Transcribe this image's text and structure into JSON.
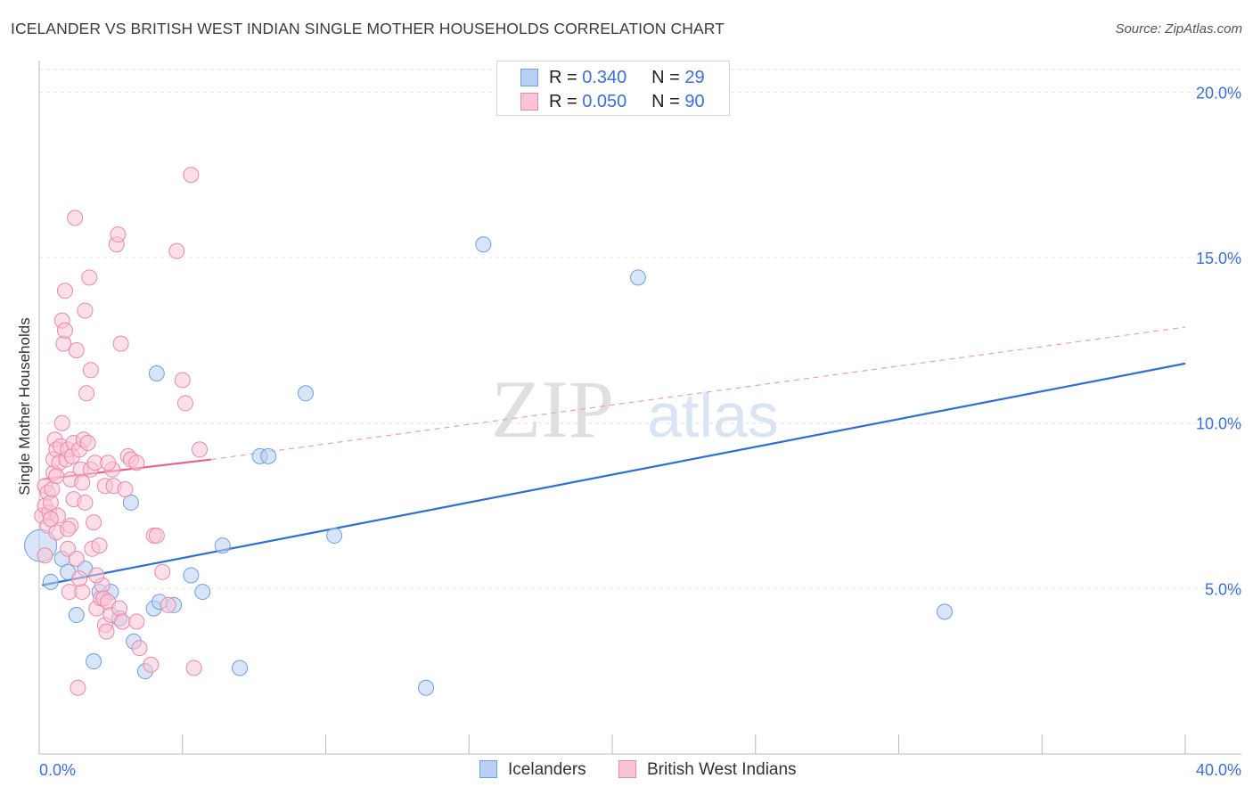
{
  "title": "ICELANDER VS BRITISH WEST INDIAN SINGLE MOTHER HOUSEHOLDS CORRELATION CHART",
  "source": "Source: ZipAtlas.com",
  "watermark": {
    "zip": "ZIP",
    "atlas": "atlas"
  },
  "legend": {
    "r_label": "R =",
    "n_label": "N =",
    "series": [
      {
        "name": "Icelanders",
        "r": "0.340",
        "n": "29",
        "fill": "#b8d0f4",
        "stroke": "#6f9fe0"
      },
      {
        "name": "British West Indians",
        "r": "0.050",
        "n": "90",
        "fill": "#f9c4d6",
        "stroke": "#e88aaa"
      }
    ]
  },
  "chart_data": {
    "type": "scatter",
    "title": "ICELANDER VS BRITISH WEST INDIAN SINGLE MOTHER HOUSEHOLDS CORRELATION CHART",
    "xlabel": "",
    "ylabel": "Single Mother Households",
    "xlim": [
      0,
      40
    ],
    "ylim": [
      0,
      20.9
    ],
    "x_tick_labels": [
      "0.0%",
      "40.0%"
    ],
    "y_ticks": [
      5,
      10,
      15,
      20
    ],
    "y_tick_labels": [
      "5.0%",
      "10.0%",
      "15.0%",
      "20.0%"
    ],
    "grid": true,
    "series": [
      {
        "name": "Icelanders",
        "color": "#6f9fe0",
        "fill": "#b8d0f4",
        "line_color": "#2f6fcf",
        "trend": {
          "x": [
            0.1,
            40
          ],
          "y": [
            5.1,
            11.8
          ],
          "style": "solid"
        },
        "points": [
          [
            0.05,
            6.3
          ],
          [
            0.4,
            5.2
          ],
          [
            0.8,
            5.9
          ],
          [
            1.0,
            5.5
          ],
          [
            1.3,
            4.2
          ],
          [
            1.6,
            5.6
          ],
          [
            1.9,
            2.8
          ],
          [
            2.1,
            4.9
          ],
          [
            2.5,
            4.9
          ],
          [
            2.8,
            4.1
          ],
          [
            3.2,
            7.6
          ],
          [
            3.3,
            3.4
          ],
          [
            3.7,
            2.5
          ],
          [
            4.0,
            4.4
          ],
          [
            4.2,
            4.6
          ],
          [
            4.1,
            11.5
          ],
          [
            4.7,
            4.5
          ],
          [
            5.3,
            5.4
          ],
          [
            5.7,
            4.9
          ],
          [
            6.4,
            6.3
          ],
          [
            7.0,
            2.6
          ],
          [
            7.7,
            9.0
          ],
          [
            8.0,
            9.0
          ],
          [
            9.3,
            10.9
          ],
          [
            10.3,
            6.6
          ],
          [
            13.5,
            2.0
          ],
          [
            15.5,
            15.4
          ],
          [
            20.9,
            14.4
          ],
          [
            31.6,
            4.3
          ]
        ]
      },
      {
        "name": "British West Indians",
        "color": "#e88aaa",
        "fill": "#f9c4d6",
        "line_color": "#e8628e",
        "trend": {
          "x": [
            0.1,
            6.0
          ],
          "y": [
            8.3,
            8.9
          ],
          "style": "solid"
        },
        "trend_extension": {
          "x": [
            6.0,
            40
          ],
          "y": [
            8.9,
            12.9
          ],
          "style": "dashed"
        },
        "points": [
          [
            0.1,
            7.2
          ],
          [
            0.2,
            7.5
          ],
          [
            0.2,
            8.1
          ],
          [
            0.3,
            6.9
          ],
          [
            0.3,
            7.9
          ],
          [
            0.35,
            7.3
          ],
          [
            0.4,
            7.6
          ],
          [
            0.45,
            8.0
          ],
          [
            0.5,
            8.5
          ],
          [
            0.5,
            8.9
          ],
          [
            0.55,
            9.5
          ],
          [
            0.6,
            9.2
          ],
          [
            0.6,
            6.7
          ],
          [
            0.65,
            7.2
          ],
          [
            0.7,
            8.8
          ],
          [
            0.75,
            9.3
          ],
          [
            0.8,
            10.0
          ],
          [
            0.8,
            13.1
          ],
          [
            0.85,
            12.4
          ],
          [
            0.9,
            14.0
          ],
          [
            0.9,
            12.8
          ],
          [
            0.95,
            8.9
          ],
          [
            1.0,
            9.2
          ],
          [
            1.0,
            6.2
          ],
          [
            1.05,
            4.9
          ],
          [
            1.1,
            8.3
          ],
          [
            1.1,
            6.9
          ],
          [
            1.15,
            9.0
          ],
          [
            1.2,
            7.7
          ],
          [
            1.2,
            9.4
          ],
          [
            1.25,
            16.2
          ],
          [
            1.3,
            12.2
          ],
          [
            1.3,
            5.9
          ],
          [
            1.35,
            2.0
          ],
          [
            1.4,
            9.2
          ],
          [
            1.45,
            8.6
          ],
          [
            1.5,
            8.2
          ],
          [
            1.5,
            4.9
          ],
          [
            1.55,
            9.5
          ],
          [
            1.6,
            7.6
          ],
          [
            1.6,
            13.4
          ],
          [
            1.65,
            10.9
          ],
          [
            1.7,
            9.4
          ],
          [
            1.75,
            14.4
          ],
          [
            1.8,
            11.6
          ],
          [
            1.8,
            8.6
          ],
          [
            1.85,
            6.2
          ],
          [
            1.9,
            7.0
          ],
          [
            1.95,
            8.8
          ],
          [
            2.0,
            4.4
          ],
          [
            2.1,
            6.3
          ],
          [
            2.15,
            4.7
          ],
          [
            2.2,
            5.1
          ],
          [
            2.25,
            4.7
          ],
          [
            2.3,
            3.9
          ],
          [
            2.3,
            8.1
          ],
          [
            2.35,
            3.7
          ],
          [
            2.4,
            4.6
          ],
          [
            2.5,
            4.2
          ],
          [
            2.55,
            8.6
          ],
          [
            2.6,
            8.1
          ],
          [
            2.7,
            15.4
          ],
          [
            2.75,
            15.7
          ],
          [
            2.8,
            4.4
          ],
          [
            2.85,
            12.4
          ],
          [
            2.9,
            4.0
          ],
          [
            3.0,
            8.0
          ],
          [
            3.1,
            9.0
          ],
          [
            3.2,
            8.9
          ],
          [
            3.4,
            8.8
          ],
          [
            3.4,
            4.0
          ],
          [
            3.5,
            3.2
          ],
          [
            3.9,
            2.7
          ],
          [
            4.0,
            6.6
          ],
          [
            4.1,
            6.6
          ],
          [
            4.3,
            5.5
          ],
          [
            4.5,
            4.5
          ],
          [
            4.8,
            15.2
          ],
          [
            5.0,
            11.3
          ],
          [
            5.1,
            10.6
          ],
          [
            5.3,
            17.5
          ],
          [
            5.4,
            2.6
          ],
          [
            5.6,
            9.2
          ],
          [
            0.2,
            6.0
          ],
          [
            0.4,
            7.1
          ],
          [
            0.6,
            8.4
          ],
          [
            1.0,
            6.8
          ],
          [
            1.4,
            5.3
          ],
          [
            2.0,
            5.4
          ],
          [
            2.4,
            8.8
          ]
        ]
      }
    ]
  }
}
